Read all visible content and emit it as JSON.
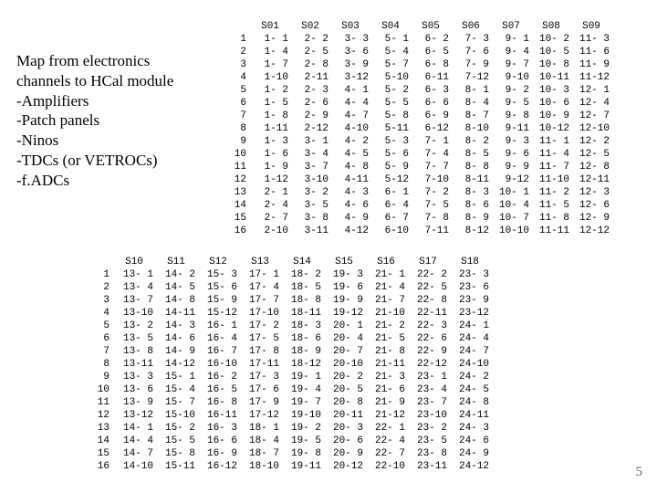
{
  "caption": {
    "title_line1": "Map from electronics",
    "title_line2": "channels to HCal module",
    "items": [
      "-Amplifiers",
      "-Patch panels",
      "-Ninos",
      "-TDCs (or VETROCs)",
      "-f.ADCs"
    ]
  },
  "page_number": "5",
  "top_table": {
    "col_headers": [
      "S01",
      "S02",
      "S03",
      "S04",
      "S05",
      "S06",
      "S07",
      "S08",
      "S09"
    ],
    "row_headers": [
      "1",
      "2",
      "3",
      "4",
      "5",
      "6",
      "7",
      "8",
      "9",
      "10",
      "11",
      "12",
      "13",
      "14",
      "15",
      "16"
    ],
    "rows": [
      [
        "1- 1",
        "2- 2",
        "3- 3",
        "5- 1",
        "6- 2",
        "7- 3",
        "9- 1",
        "10- 2",
        "11- 3"
      ],
      [
        "1- 4",
        "2- 5",
        "3- 6",
        "5- 4",
        "6- 5",
        "7- 6",
        "9- 4",
        "10- 5",
        "11- 6"
      ],
      [
        "1- 7",
        "2- 8",
        "3- 9",
        "5- 7",
        "6- 8",
        "7- 9",
        "9- 7",
        "10- 8",
        "11- 9"
      ],
      [
        "1-10",
        "2-11",
        "3-12",
        "5-10",
        "6-11",
        "7-12",
        "9-10",
        "10-11",
        "11-12"
      ],
      [
        "1- 2",
        "2- 3",
        "4- 1",
        "5- 2",
        "6- 3",
        "8- 1",
        "9- 2",
        "10- 3",
        "12- 1"
      ],
      [
        "1- 5",
        "2- 6",
        "4- 4",
        "5- 5",
        "6- 6",
        "8- 4",
        "9- 5",
        "10- 6",
        "12- 4"
      ],
      [
        "1- 8",
        "2- 9",
        "4- 7",
        "5- 8",
        "6- 9",
        "8- 7",
        "9- 8",
        "10- 9",
        "12- 7"
      ],
      [
        "1-11",
        "2-12",
        "4-10",
        "5-11",
        "6-12",
        "8-10",
        "9-11",
        "10-12",
        "12-10"
      ],
      [
        "1- 3",
        "3- 1",
        "4- 2",
        "5- 3",
        "7- 1",
        "8- 2",
        "9- 3",
        "11- 1",
        "12- 2"
      ],
      [
        "1- 6",
        "3- 4",
        "4- 5",
        "5- 6",
        "7- 4",
        "8- 5",
        "9- 6",
        "11- 4",
        "12- 5"
      ],
      [
        "1- 9",
        "3- 7",
        "4- 8",
        "5- 9",
        "7- 7",
        "8- 8",
        "9- 9",
        "11- 7",
        "12- 8"
      ],
      [
        "1-12",
        "3-10",
        "4-11",
        "5-12",
        "7-10",
        "8-11",
        "9-12",
        "11-10",
        "12-11"
      ],
      [
        "2- 1",
        "3- 2",
        "4- 3",
        "6- 1",
        "7- 2",
        "8- 3",
        "10- 1",
        "11- 2",
        "12- 3"
      ],
      [
        "2- 4",
        "3- 5",
        "4- 6",
        "6- 4",
        "7- 5",
        "8- 6",
        "10- 4",
        "11- 5",
        "12- 6"
      ],
      [
        "2- 7",
        "3- 8",
        "4- 9",
        "6- 7",
        "7- 8",
        "8- 9",
        "10- 7",
        "11- 8",
        "12- 9"
      ],
      [
        "2-10",
        "3-11",
        "4-12",
        "6-10",
        "7-11",
        "8-12",
        "10-10",
        "11-11",
        "12-12"
      ]
    ]
  },
  "bot_table": {
    "col_headers": [
      "S10",
      "S11",
      "S12",
      "S13",
      "S14",
      "S15",
      "S16",
      "S17",
      "S18"
    ],
    "row_headers": [
      "1",
      "2",
      "3",
      "4",
      "5",
      "6",
      "7",
      "8",
      "9",
      "10",
      "11",
      "12",
      "13",
      "14",
      "15",
      "16"
    ],
    "rows": [
      [
        "13- 1",
        "14- 2",
        "15- 3",
        "17- 1",
        "18- 2",
        "19- 3",
        "21- 1",
        "22- 2",
        "23- 3"
      ],
      [
        "13- 4",
        "14- 5",
        "15- 6",
        "17- 4",
        "18- 5",
        "19- 6",
        "21- 4",
        "22- 5",
        "23- 6"
      ],
      [
        "13- 7",
        "14- 8",
        "15- 9",
        "17- 7",
        "18- 8",
        "19- 9",
        "21- 7",
        "22- 8",
        "23- 9"
      ],
      [
        "13-10",
        "14-11",
        "15-12",
        "17-10",
        "18-11",
        "19-12",
        "21-10",
        "22-11",
        "23-12"
      ],
      [
        "13- 2",
        "14- 3",
        "16- 1",
        "17- 2",
        "18- 3",
        "20- 1",
        "21- 2",
        "22- 3",
        "24- 1"
      ],
      [
        "13- 5",
        "14- 6",
        "16- 4",
        "17- 5",
        "18- 6",
        "20- 4",
        "21- 5",
        "22- 6",
        "24- 4"
      ],
      [
        "13- 8",
        "14- 9",
        "16- 7",
        "17- 8",
        "18- 9",
        "20- 7",
        "21- 8",
        "22- 9",
        "24- 7"
      ],
      [
        "13-11",
        "14-12",
        "16-10",
        "17-11",
        "18-12",
        "20-10",
        "21-11",
        "22-12",
        "24-10"
      ],
      [
        "13- 3",
        "15- 1",
        "16- 2",
        "17- 3",
        "19- 1",
        "20- 2",
        "21- 3",
        "23- 1",
        "24- 2"
      ],
      [
        "13- 6",
        "15- 4",
        "16- 5",
        "17- 6",
        "19- 4",
        "20- 5",
        "21- 6",
        "23- 4",
        "24- 5"
      ],
      [
        "13- 9",
        "15- 7",
        "16- 8",
        "17- 9",
        "19- 7",
        "20- 8",
        "21- 9",
        "23- 7",
        "24- 8"
      ],
      [
        "13-12",
        "15-10",
        "16-11",
        "17-12",
        "19-10",
        "20-11",
        "21-12",
        "23-10",
        "24-11"
      ],
      [
        "14- 1",
        "15- 2",
        "16- 3",
        "18- 1",
        "19- 2",
        "20- 3",
        "22- 1",
        "23- 2",
        "24- 3"
      ],
      [
        "14- 4",
        "15- 5",
        "16- 6",
        "18- 4",
        "19- 5",
        "20- 6",
        "22- 4",
        "23- 5",
        "24- 6"
      ],
      [
        "14- 7",
        "15- 8",
        "16- 9",
        "18- 7",
        "19- 8",
        "20- 9",
        "22- 7",
        "23- 8",
        "24- 9"
      ],
      [
        "14-10",
        "15-11",
        "16-12",
        "18-10",
        "19-11",
        "20-12",
        "22-10",
        "23-11",
        "24-12"
      ]
    ]
  }
}
